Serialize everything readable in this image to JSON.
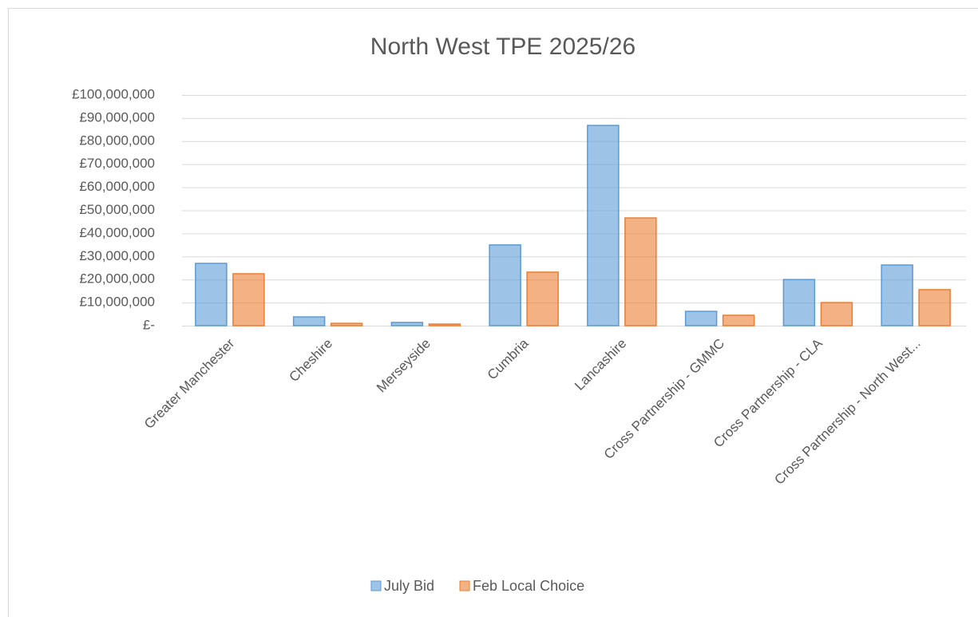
{
  "chart_data": {
    "type": "bar",
    "title": "North West TPE 2025/26",
    "categories": [
      "Greater Manchester",
      "Cheshire",
      "Merseyside",
      "Cumbria",
      "Lancashire",
      "Cross Partnership - GMMC",
      "Cross Partnership - CLA",
      "Cross Partnership - North West..."
    ],
    "series": [
      {
        "name": "July Bid",
        "color": "#5b9bd5",
        "values": [
          27000000,
          3800000,
          1400000,
          35000000,
          86800000,
          6200000,
          20000000,
          26300000
        ]
      },
      {
        "name": "Feb Local Choice",
        "color": "#ed7d31",
        "values": [
          22500000,
          1000000,
          700000,
          23200000,
          46700000,
          4500000,
          10000000,
          15600000
        ]
      }
    ],
    "ylim": [
      0,
      100000000
    ],
    "yticks": [
      {
        "value": 0,
        "label": "£-"
      },
      {
        "value": 10000000,
        "label": "£10,000,000"
      },
      {
        "value": 20000000,
        "label": "£20,000,000"
      },
      {
        "value": 30000000,
        "label": "£30,000,000"
      },
      {
        "value": 40000000,
        "label": "£40,000,000"
      },
      {
        "value": 50000000,
        "label": "£50,000,000"
      },
      {
        "value": 60000000,
        "label": "£60,000,000"
      },
      {
        "value": 70000000,
        "label": "£70,000,000"
      },
      {
        "value": 80000000,
        "label": "£80,000,000"
      },
      {
        "value": 90000000,
        "label": "£90,000,000"
      },
      {
        "value": 100000000,
        "label": "£100,000,000"
      }
    ],
    "grid": true,
    "legend": "bottom"
  }
}
